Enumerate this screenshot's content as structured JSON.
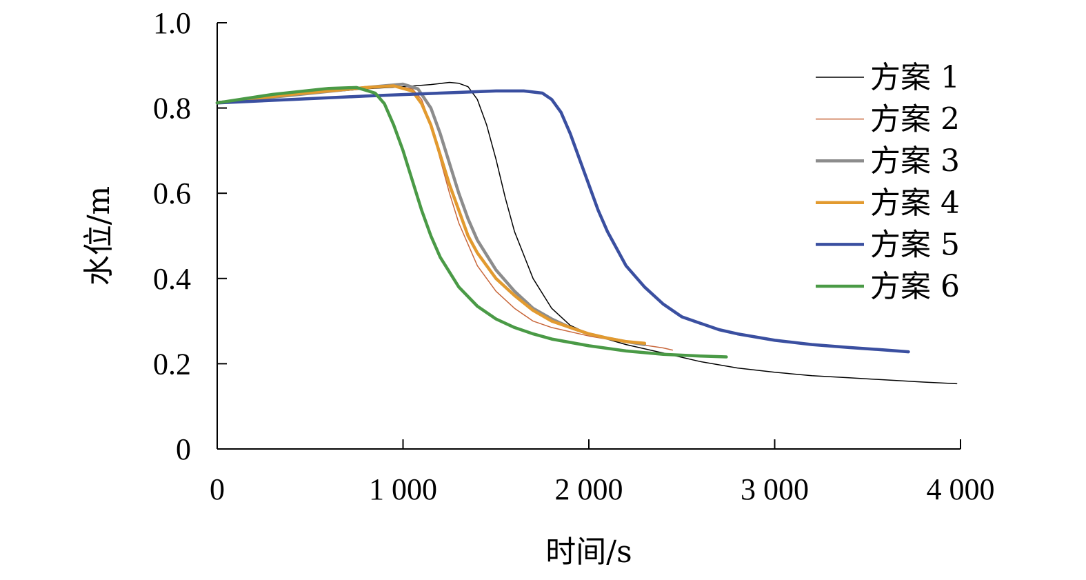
{
  "chart_data": {
    "type": "line",
    "title": "",
    "xlabel": "时间/s",
    "ylabel": "水位/m",
    "xlim": [
      0,
      4000
    ],
    "ylim": [
      0,
      1.0
    ],
    "x_ticks": [
      0,
      1000,
      2000,
      3000,
      4000
    ],
    "x_tick_labels": [
      "0",
      "1 000",
      "2 000",
      "3 000",
      "4 000"
    ],
    "y_ticks": [
      0,
      0.2,
      0.4,
      0.6,
      0.8,
      1.0
    ],
    "y_tick_labels": [
      "0",
      "0.2",
      "0.4",
      "0.6",
      "0.8",
      "1.0"
    ],
    "grid": false,
    "legend_position": "top-right",
    "series": [
      {
        "name": "方案 1",
        "color": "#000000",
        "width": 1.5,
        "x": [
          0,
          400,
          800,
          1000,
          1150,
          1250,
          1300,
          1350,
          1400,
          1450,
          1500,
          1550,
          1600,
          1700,
          1800,
          1900,
          2000,
          2200,
          2400,
          2600,
          2800,
          3000,
          3200,
          3400,
          3600,
          3800,
          3980
        ],
        "y": [
          0.815,
          0.83,
          0.845,
          0.85,
          0.855,
          0.86,
          0.858,
          0.85,
          0.82,
          0.76,
          0.68,
          0.59,
          0.51,
          0.4,
          0.33,
          0.29,
          0.27,
          0.245,
          0.225,
          0.205,
          0.19,
          0.18,
          0.172,
          0.167,
          0.162,
          0.157,
          0.153
        ]
      },
      {
        "name": "方案 2",
        "color": "#c8663a",
        "width": 1.5,
        "x": [
          0,
          400,
          800,
          950,
          1050,
          1100,
          1150,
          1200,
          1250,
          1300,
          1400,
          1500,
          1600,
          1700,
          1800,
          2000,
          2200,
          2400,
          2450
        ],
        "y": [
          0.812,
          0.83,
          0.845,
          0.852,
          0.845,
          0.82,
          0.76,
          0.68,
          0.6,
          0.53,
          0.43,
          0.37,
          0.33,
          0.3,
          0.285,
          0.265,
          0.25,
          0.237,
          0.232
        ]
      },
      {
        "name": "方案 3",
        "color": "#8c8c8c",
        "width": 4.5,
        "x": [
          0,
          400,
          800,
          1000,
          1080,
          1150,
          1200,
          1250,
          1300,
          1350,
          1400,
          1500,
          1600,
          1700,
          1800,
          1900,
          2000,
          2100,
          2200,
          2300
        ],
        "y": [
          0.812,
          0.83,
          0.848,
          0.856,
          0.845,
          0.8,
          0.74,
          0.67,
          0.6,
          0.54,
          0.49,
          0.42,
          0.37,
          0.33,
          0.305,
          0.285,
          0.27,
          0.26,
          0.252,
          0.245
        ]
      },
      {
        "name": "方案 4",
        "color": "#e29a2f",
        "width": 4.5,
        "x": [
          0,
          400,
          800,
          950,
          1050,
          1100,
          1150,
          1200,
          1250,
          1300,
          1350,
          1400,
          1500,
          1600,
          1700,
          1800,
          1900,
          2000,
          2100,
          2200,
          2300
        ],
        "y": [
          0.812,
          0.832,
          0.848,
          0.852,
          0.84,
          0.81,
          0.76,
          0.69,
          0.62,
          0.56,
          0.5,
          0.46,
          0.4,
          0.36,
          0.325,
          0.3,
          0.285,
          0.27,
          0.26,
          0.252,
          0.248
        ]
      },
      {
        "name": "方案 5",
        "color": "#3a4fa0",
        "width": 4.5,
        "x": [
          0,
          400,
          800,
          1200,
          1500,
          1650,
          1750,
          1800,
          1850,
          1900,
          1950,
          2000,
          2050,
          2100,
          2200,
          2300,
          2400,
          2500,
          2600,
          2700,
          2800,
          3000,
          3200,
          3400,
          3600,
          3720
        ],
        "y": [
          0.812,
          0.82,
          0.828,
          0.835,
          0.84,
          0.84,
          0.835,
          0.82,
          0.79,
          0.74,
          0.68,
          0.62,
          0.56,
          0.51,
          0.43,
          0.38,
          0.34,
          0.31,
          0.295,
          0.28,
          0.27,
          0.255,
          0.245,
          0.238,
          0.232,
          0.228
        ]
      },
      {
        "name": "方案 6",
        "color": "#4a9a46",
        "width": 4.5,
        "x": [
          0,
          300,
          600,
          750,
          850,
          900,
          950,
          1000,
          1050,
          1100,
          1150,
          1200,
          1300,
          1400,
          1500,
          1600,
          1700,
          1800,
          2000,
          2200,
          2400,
          2600,
          2740
        ],
        "y": [
          0.812,
          0.832,
          0.846,
          0.848,
          0.835,
          0.81,
          0.76,
          0.7,
          0.63,
          0.56,
          0.5,
          0.45,
          0.38,
          0.335,
          0.305,
          0.285,
          0.27,
          0.258,
          0.242,
          0.23,
          0.222,
          0.218,
          0.216
        ]
      }
    ]
  }
}
